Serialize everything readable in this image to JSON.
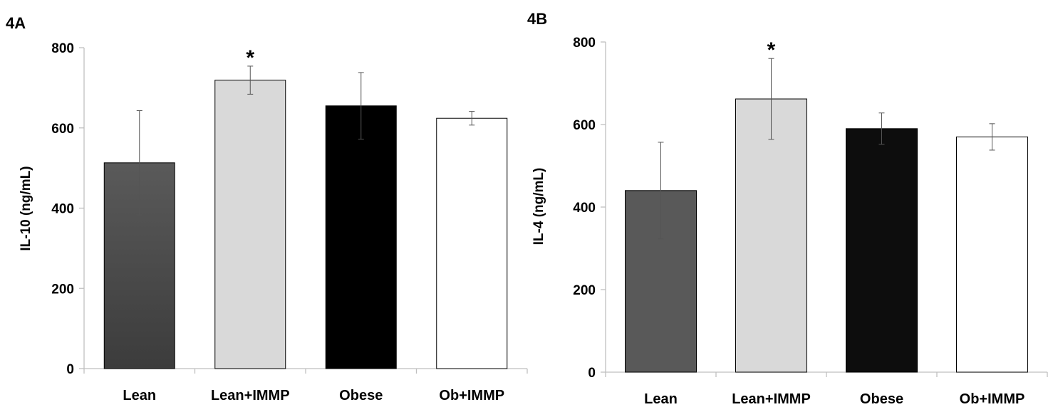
{
  "chart_data": [
    {
      "type": "bar",
      "panel_label": "4A",
      "ylabel": "IL-10 (ng/mL)",
      "ylim": [
        0,
        800
      ],
      "yticks": [
        "0",
        "200",
        "400",
        "600",
        "800"
      ],
      "categories": [
        "Lean",
        "Lean+IMMP",
        "Obese",
        "Ob+IMMP"
      ],
      "values": [
        513,
        719,
        655,
        624
      ],
      "errors": [
        130,
        35,
        83,
        17
      ],
      "annotations": [
        "",
        "*",
        "",
        ""
      ],
      "colors": [
        "#4d4d4d",
        "#d9d9d9",
        "#000000",
        "#ffffff"
      ],
      "gradient_first_bar": true
    },
    {
      "type": "bar",
      "panel_label": "4B",
      "ylabel": "IL-4 (ng/mL)",
      "ylim": [
        0,
        800
      ],
      "yticks": [
        "0",
        "200",
        "400",
        "600",
        "800"
      ],
      "categories": [
        "Lean",
        "Lean+IMMP",
        "Obese",
        "Ob+IMMP"
      ],
      "values": [
        440,
        662,
        590,
        570
      ],
      "errors": [
        117,
        98,
        38,
        32
      ],
      "annotations": [
        "",
        "*",
        "",
        ""
      ],
      "colors": [
        "#595959",
        "#d9d9d9",
        "#0d0d0d",
        "#ffffff"
      ],
      "gradient_first_bar": false
    }
  ]
}
